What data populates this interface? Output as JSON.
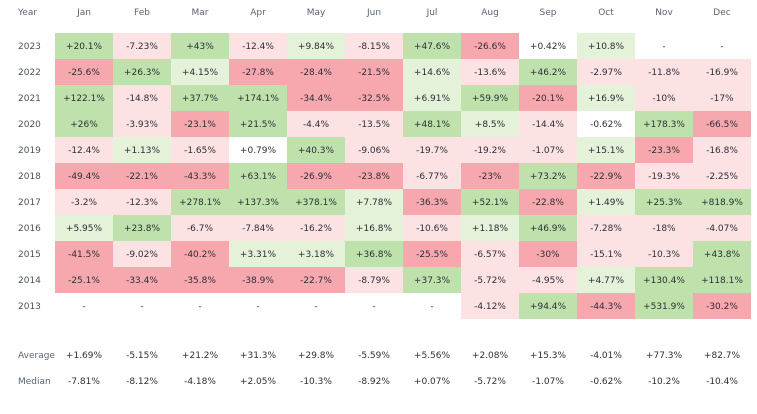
{
  "chart_data": {
    "type": "heatmap",
    "corner_label": "Year",
    "months": [
      "Jan",
      "Feb",
      "Mar",
      "Apr",
      "May",
      "Jun",
      "Jul",
      "Aug",
      "Sep",
      "Oct",
      "Nov",
      "Dec"
    ],
    "rows": [
      {
        "year": "2023",
        "values": [
          20.1,
          -7.23,
          43,
          -12.4,
          9.84,
          -8.15,
          47.6,
          -26.6,
          0.42,
          10.8,
          null,
          null
        ],
        "labels": [
          "+20.1%",
          "-7.23%",
          "+43%",
          "-12.4%",
          "+9.84%",
          "-8.15%",
          "+47.6%",
          "-26.6%",
          "+0.42%",
          "+10.8%",
          "-",
          "-"
        ]
      },
      {
        "year": "2022",
        "values": [
          -25.6,
          26.3,
          4.15,
          -27.8,
          -28.4,
          -21.5,
          14.6,
          -13.6,
          46.2,
          -2.97,
          -11.8,
          -16.9
        ],
        "labels": [
          "-25.6%",
          "+26.3%",
          "+4.15%",
          "-27.8%",
          "-28.4%",
          "-21.5%",
          "+14.6%",
          "-13.6%",
          "+46.2%",
          "-2.97%",
          "-11.8%",
          "-16.9%"
        ]
      },
      {
        "year": "2021",
        "values": [
          122.1,
          -14.8,
          37.7,
          174.1,
          -34.4,
          -32.5,
          6.91,
          59.9,
          -20.1,
          16.9,
          -10,
          -17
        ],
        "labels": [
          "+122.1%",
          "-14.8%",
          "+37.7%",
          "+174.1%",
          "-34.4%",
          "-32.5%",
          "+6.91%",
          "+59.9%",
          "-20.1%",
          "+16.9%",
          "-10%",
          "-17%"
        ]
      },
      {
        "year": "2020",
        "values": [
          26,
          -3.93,
          -23.1,
          21.5,
          -4.4,
          -13.5,
          48.1,
          8.5,
          -14.4,
          -0.62,
          178.3,
          -66.5
        ],
        "labels": [
          "+26%",
          "-3.93%",
          "-23.1%",
          "+21.5%",
          "-4.4%",
          "-13.5%",
          "+48.1%",
          "+8.5%",
          "-14.4%",
          "-0.62%",
          "+178.3%",
          "-66.5%"
        ]
      },
      {
        "year": "2019",
        "values": [
          -12.4,
          1.13,
          -1.65,
          0.79,
          40.3,
          -9.06,
          -19.7,
          -19.2,
          -1.07,
          15.1,
          -23.3,
          -16.8
        ],
        "labels": [
          "-12.4%",
          "+1.13%",
          "-1.65%",
          "+0.79%",
          "+40.3%",
          "-9.06%",
          "-19.7%",
          "-19.2%",
          "-1.07%",
          "+15.1%",
          "-23.3%",
          "-16.8%"
        ]
      },
      {
        "year": "2018",
        "values": [
          -49.4,
          -22.1,
          -43.3,
          63.1,
          -26.9,
          -23.8,
          -6.77,
          -23,
          73.2,
          -22.9,
          -19.3,
          -2.25
        ],
        "labels": [
          "-49.4%",
          "-22.1%",
          "-43.3%",
          "+63.1%",
          "-26.9%",
          "-23.8%",
          "-6.77%",
          "-23%",
          "+73.2%",
          "-22.9%",
          "-19.3%",
          "-2.25%"
        ]
      },
      {
        "year": "2017",
        "values": [
          -3.2,
          -12.3,
          278.1,
          137.3,
          378.1,
          7.78,
          -36.3,
          52.1,
          -22.8,
          1.49,
          25.3,
          818.9
        ],
        "labels": [
          "-3.2%",
          "-12.3%",
          "+278.1%",
          "+137.3%",
          "+378.1%",
          "+7.78%",
          "-36.3%",
          "+52.1%",
          "-22.8%",
          "+1.49%",
          "+25.3%",
          "+818.9%"
        ]
      },
      {
        "year": "2016",
        "values": [
          5.95,
          23.8,
          -6.7,
          -7.84,
          -16.2,
          16.8,
          -10.6,
          1.18,
          46.9,
          -7.28,
          -18,
          -4.07
        ],
        "labels": [
          "+5.95%",
          "+23.8%",
          "-6.7%",
          "-7.84%",
          "-16.2%",
          "+16.8%",
          "-10.6%",
          "+1.18%",
          "+46.9%",
          "-7.28%",
          "-18%",
          "-4.07%"
        ]
      },
      {
        "year": "2015",
        "values": [
          -41.5,
          -9.02,
          -40.2,
          3.31,
          3.18,
          36.8,
          -25.5,
          -6.57,
          -30,
          -15.1,
          -10.3,
          43.8
        ],
        "labels": [
          "-41.5%",
          "-9.02%",
          "-40.2%",
          "+3.31%",
          "+3.18%",
          "+36.8%",
          "-25.5%",
          "-6.57%",
          "-30%",
          "-15.1%",
          "-10.3%",
          "+43.8%"
        ]
      },
      {
        "year": "2014",
        "values": [
          -25.1,
          -33.4,
          -35.8,
          -38.9,
          -22.7,
          -8.79,
          37.3,
          -5.72,
          -4.95,
          4.77,
          130.4,
          118.1
        ],
        "labels": [
          "-25.1%",
          "-33.4%",
          "-35.8%",
          "-38.9%",
          "-22.7%",
          "-8.79%",
          "+37.3%",
          "-5.72%",
          "-4.95%",
          "+4.77%",
          "+130.4%",
          "+118.1%"
        ]
      },
      {
        "year": "2013",
        "values": [
          null,
          null,
          null,
          null,
          null,
          null,
          null,
          -4.12,
          94.4,
          -44.3,
          531.9,
          -30.2
        ],
        "labels": [
          "-",
          "-",
          "-",
          "-",
          "-",
          "-",
          "-",
          "-4.12%",
          "+94.4%",
          "-44.3%",
          "+531.9%",
          "-30.2%"
        ]
      }
    ],
    "summary": [
      {
        "label": "Average",
        "values": [
          "+1.69%",
          "-5.15%",
          "+21.2%",
          "+31.3%",
          "+29.8%",
          "-5.59%",
          "+5.56%",
          "+2.08%",
          "+15.3%",
          "-4.01%",
          "+77.3%",
          "+82.7%"
        ]
      },
      {
        "label": "Median",
        "values": [
          "-7.81%",
          "-8.12%",
          "-4.18%",
          "+2.05%",
          "-10.3%",
          "-8.92%",
          "+0.07%",
          "-5.72%",
          "-1.07%",
          "-0.62%",
          "-10.2%",
          "-10.4%"
        ]
      }
    ],
    "colors": {
      "positive_strong": "#bfe2ad",
      "positive_light": "#e3f2d9",
      "negative_strong": "#f7a8ae",
      "negative_light": "#fde2e4",
      "neutral": "#ffffff",
      "text": "#2b2f36",
      "header_text": "#5b6472"
    }
  }
}
